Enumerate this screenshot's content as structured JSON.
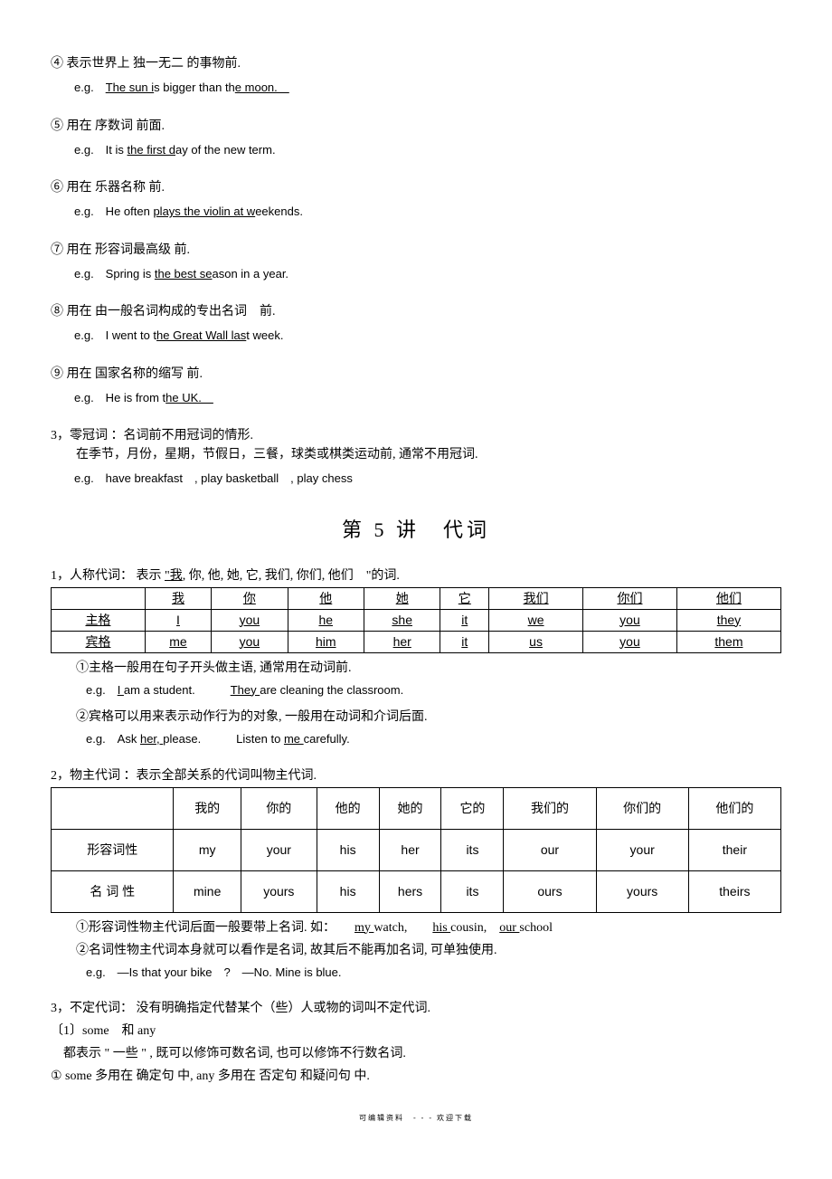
{
  "items": [
    {
      "num": "④",
      "head": "表示世界上 独一无二 的事物前.",
      "eg": "e.g.　<span class='u'>The sun i</span>s bigger than th<span class='u'>e moon.　</span>"
    },
    {
      "num": "⑤",
      "head": "用在 序数词 前面.",
      "eg": "e.g.　It is <span class='u'>the first d</span>ay of the new term."
    },
    {
      "num": "⑥",
      "head": "用在 乐器名称 前.",
      "eg": "e.g.　He often <span class='u'>plays the violin at w</span>eekends."
    },
    {
      "num": "⑦",
      "head": "用在 形容词最高级 前.",
      "eg": "e.g.　Spring is <span class='u'>the best se</span>ason in a year."
    },
    {
      "num": "⑧",
      "head": " 用在 由一般名词构成的专出名词　前.",
      "eg": "e.g.　I went to t<span class='u'>he Great Wall las</span>t week."
    },
    {
      "num": "⑨",
      "head": "用在 国家名称的缩写 前.",
      "eg": "e.g.　He is from t<span class='u'>he UK.　</span>"
    }
  ],
  "zero_article": {
    "head": "3，零冠词 ：名词前不用冠词的情形.",
    "line1": "在季节，月份，星期，节假日，三餐，球类或棋类运动前, 通常不用冠词.",
    "eg": "e.g.　have breakfast　, play basketball　, play chess"
  },
  "lesson_title": "第 5 讲　代词",
  "sec1": {
    "head": "1，人称代词：  表示  <span class='sec-u'>\"我</span>,  你,  他,  她,  它,  我们,  你们,  他们　\"的词.",
    "table": {
      "headers": [
        "",
        "我",
        "你",
        "他",
        "她",
        "它",
        "我们",
        "你们",
        "他们"
      ],
      "rows": [
        [
          "主格",
          "I",
          "you",
          "he",
          "she",
          "it",
          "we",
          "you",
          "they"
        ],
        [
          "宾格",
          "me",
          "you",
          "him",
          "her",
          "it",
          "us",
          "you",
          "them"
        ]
      ]
    },
    "note1": "①主格一般用在句子开头做主语, 通常用在动词前.",
    "eg1": "e.g.　<span class='u'>I </span>am a student.　　　<span class='u'>They </span>are cleaning the classroom.",
    "note2": "②宾格可以用来表示动作行为的对象, 一般用在动词和介词后面.",
    "eg2": "e.g.　Ask <span class='u'>her, </span>please.　　　Listen to <span class='u'>me </span>carefully."
  },
  "sec2": {
    "head": "2，物主代词 ：表示全部关系的代词叫物主代词.",
    "table": {
      "headers": [
        "",
        "我的",
        "你的",
        "他的",
        "她的",
        "它的",
        "我们的",
        "你们的",
        "他们的"
      ],
      "rows": [
        [
          "形容词性",
          "my",
          "your",
          "his",
          "her",
          "its",
          "our",
          "your",
          "their"
        ],
        [
          "名 词 性",
          "mine",
          "yours",
          "his",
          "hers",
          "its",
          "ours",
          "yours",
          "theirs"
        ]
      ]
    },
    "note1": "①形容词性物主代词后面一般要带上名词. 如：　　<span class='u'>my </span>watch,　　<span class='u'>his </span>cousin,　<span class='u'>our </span>school",
    "note2": "②名词性物主代词本身就可以看作是名词, 故其后不能再加名词, 可单独使用.",
    "eg": "e.g.　―Is that your bike　?　―No. Mine is blue."
  },
  "sec3": {
    "head": "3，不定代词：  没有明确指定代替某个（些）人或物的词叫不定代词.",
    "sub1": "〔1〕some　和 any",
    "sub1_desc": "都表示 \" 一些 \" , 既可以修饰可数名词, 也可以修饰不行数名词.",
    "sub2": "① some 多用在 确定句 中, any 多用在 否定句 和疑问句 中."
  },
  "footer": "可编辑资料　- - - 欢迎下载"
}
